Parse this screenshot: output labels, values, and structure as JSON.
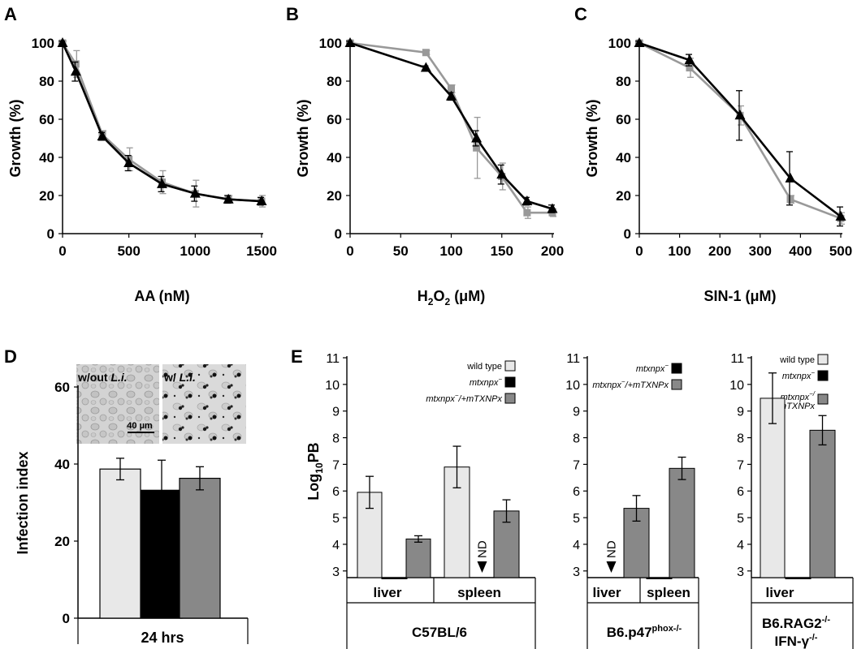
{
  "panel_letters": [
    "A",
    "B",
    "C",
    "D",
    "E"
  ],
  "colors": {
    "black": "#000000",
    "gray": "#999999",
    "light": "#e8e8e8",
    "dark": "#888888"
  },
  "chart_data": [
    {
      "id": "A",
      "type": "line",
      "title": "",
      "xlabel": "AA (nM)",
      "ylabel": "Growth (%)",
      "xlim": [
        0,
        1500
      ],
      "ylim": [
        0,
        100
      ],
      "xticks": [
        0,
        500,
        1000,
        1500
      ],
      "yticks": [
        0,
        20,
        40,
        60,
        80,
        100
      ],
      "series": [
        {
          "color": "#999999",
          "marker": "square",
          "x": [
            0,
            100,
            300,
            500,
            750,
            1000,
            1250,
            1500
          ],
          "y": [
            100,
            89,
            52,
            39,
            27,
            21,
            18,
            17
          ],
          "err": [
            1,
            7,
            2,
            6,
            6,
            7,
            2,
            3
          ]
        },
        {
          "color": "#000000",
          "marker": "triangle",
          "x": [
            0,
            100,
            300,
            500,
            750,
            1000,
            1250,
            1500
          ],
          "y": [
            100,
            85,
            51,
            37,
            26,
            21,
            18,
            17
          ],
          "err": [
            1,
            5,
            2,
            4,
            4,
            4,
            2,
            2
          ]
        }
      ]
    },
    {
      "id": "B",
      "type": "line",
      "title": "",
      "xlabel": "H2O2 (μM)",
      "ylabel": "Growth (%)",
      "xlim": [
        0,
        200
      ],
      "ylim": [
        0,
        100
      ],
      "xticks": [
        0,
        50,
        100,
        150,
        200
      ],
      "yticks": [
        0,
        20,
        40,
        60,
        80,
        100
      ],
      "series": [
        {
          "color": "#999999",
          "marker": "square",
          "x": [
            0,
            75,
            100,
            125,
            150,
            175,
            200
          ],
          "y": [
            100,
            95,
            76,
            45,
            30,
            11,
            11
          ],
          "err": [
            1,
            1,
            2,
            16,
            7,
            3,
            2
          ]
        },
        {
          "color": "#000000",
          "marker": "triangle",
          "x": [
            0,
            75,
            100,
            125,
            150,
            175,
            200
          ],
          "y": [
            100,
            87,
            72,
            50,
            31,
            17,
            13
          ],
          "err": [
            1,
            1,
            2,
            4,
            5,
            2,
            2
          ]
        }
      ]
    },
    {
      "id": "C",
      "type": "line",
      "title": "",
      "xlabel": "SIN-1 (μM)",
      "ylabel": "Growth (%)",
      "xlim": [
        0,
        500
      ],
      "ylim": [
        0,
        100
      ],
      "xticks": [
        0,
        100,
        200,
        300,
        400,
        500
      ],
      "yticks": [
        0,
        20,
        40,
        60,
        80,
        100
      ],
      "series": [
        {
          "color": "#999999",
          "marker": "square",
          "x": [
            0,
            125,
            250,
            375,
            500
          ],
          "y": [
            100,
            87,
            62,
            18,
            8
          ],
          "err": [
            1,
            5,
            5,
            2,
            3
          ]
        },
        {
          "color": "#000000",
          "marker": "triangle",
          "x": [
            0,
            125,
            250,
            375,
            500
          ],
          "y": [
            100,
            91,
            62,
            29,
            9
          ],
          "err": [
            1,
            3,
            13,
            14,
            5
          ]
        }
      ]
    },
    {
      "id": "D",
      "type": "bar",
      "title": "",
      "xlabel": "24 hrs",
      "ylabel": "Infection index",
      "ylim": [
        0,
        60
      ],
      "yticks": [
        0,
        20,
        40,
        60
      ],
      "values": [
        38.7,
        33.2,
        36.3
      ],
      "errors": [
        2.8,
        7.8,
        3.0
      ],
      "bar_colors": [
        "#e8e8e8",
        "#000000",
        "#888888"
      ],
      "images": [
        {
          "caption_plain": "w/out ",
          "caption_italic": "L.i."
        },
        {
          "caption_plain": "w/ ",
          "caption_italic": "L.i."
        }
      ],
      "scale_bar": "40 µm"
    },
    {
      "id": "E",
      "type": "bar",
      "title": "",
      "ylabel_main": "Log",
      "ylabel_sub": "10",
      "ylabel_end": "PB",
      "ylim": [
        2.75,
        11
      ],
      "yticks": [
        3,
        4,
        5,
        6,
        7,
        8,
        9,
        10,
        11
      ],
      "groups": [
        {
          "strain": "C57BL/6",
          "strain_sup": "",
          "organs": [
            "liver",
            "spleen"
          ],
          "legend": [
            {
              "label": "wild type",
              "color": "#e8e8e8",
              "italic": false,
              "sup": ""
            },
            {
              "label": "mtxnpx",
              "color": "#000000",
              "italic": true,
              "sup": "−"
            },
            {
              "label": "mtxnpx",
              "color": "#888888",
              "italic": true,
              "sup": "−",
              "suffix": "/+mTXNPx"
            }
          ],
          "bars": [
            {
              "organ": "liver",
              "color": "#e8e8e8",
              "value": 5.95,
              "err": 0.6
            },
            {
              "organ": "liver",
              "color": "#000000",
              "value": 2.75,
              "err": 0
            },
            {
              "organ": "liver",
              "color": "#888888",
              "value": 4.2,
              "err": 0.12
            },
            {
              "organ": "spleen",
              "color": "#e8e8e8",
              "value": 6.9,
              "err": 0.78
            },
            {
              "organ": "spleen",
              "color": "#000000",
              "value": null,
              "err": 0,
              "nd": "ND"
            },
            {
              "organ": "spleen",
              "color": "#888888",
              "value": 5.25,
              "err": 0.42
            }
          ]
        },
        {
          "strain": "B6.p47",
          "strain_sup": "phox-/-",
          "organs": [
            "liver",
            "spleen"
          ],
          "legend": [
            {
              "label": "mtxnpx",
              "color": "#000000",
              "italic": true,
              "sup": "−"
            },
            {
              "label": "mtxnpx",
              "color": "#888888",
              "italic": true,
              "sup": "−",
              "suffix": "/+mTXNPx"
            }
          ],
          "bars": [
            {
              "organ": "liver",
              "color": "#000000",
              "value": null,
              "err": 0,
              "nd": "ND"
            },
            {
              "organ": "liver",
              "color": "#888888",
              "value": 5.35,
              "err": 0.48
            },
            {
              "organ": "spleen",
              "color": "#000000",
              "value": 2.75,
              "err": 0
            },
            {
              "organ": "spleen",
              "color": "#888888",
              "value": 6.85,
              "err": 0.42
            }
          ]
        },
        {
          "strain": "B6.RAG2",
          "strain_sup": "-/-",
          "strain_line2": "IFN-γ",
          "strain_line2_sup": "-/-",
          "organs": [
            "liver"
          ],
          "legend": [
            {
              "label": "wild type",
              "color": "#e8e8e8",
              "italic": false,
              "sup": ""
            },
            {
              "label": "mtxnpx",
              "color": "#000000",
              "italic": true,
              "sup": "−"
            },
            {
              "label": "mtxnpx",
              "color": "#888888",
              "italic": true,
              "sup": "−/",
              "suffix": "+mTXNPx"
            }
          ],
          "bars": [
            {
              "organ": "liver",
              "color": "#e8e8e8",
              "value": 9.48,
              "err": 0.95
            },
            {
              "organ": "liver",
              "color": "#000000",
              "value": 2.75,
              "err": 0
            },
            {
              "organ": "liver",
              "color": "#888888",
              "value": 8.28,
              "err": 0.55
            }
          ]
        }
      ]
    }
  ]
}
